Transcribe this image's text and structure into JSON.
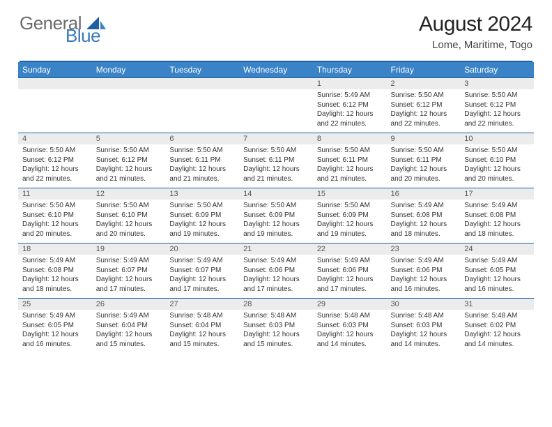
{
  "brand": {
    "part1": "General",
    "part2": "Blue"
  },
  "title": "August 2024",
  "location": "Lome, Maritime, Togo",
  "colors": {
    "header_bg": "#3a83c7",
    "rule": "#1e5fa3",
    "daynum_bg": "#ececec",
    "logo_gray": "#6b6b6b",
    "logo_blue": "#3a7ab8"
  },
  "weekday_labels": [
    "Sunday",
    "Monday",
    "Tuesday",
    "Wednesday",
    "Thursday",
    "Friday",
    "Saturday"
  ],
  "weeks": [
    [
      null,
      null,
      null,
      null,
      {
        "n": "1",
        "sr": "Sunrise: 5:49 AM",
        "ss": "Sunset: 6:12 PM",
        "d1": "Daylight: 12 hours",
        "d2": "and 22 minutes."
      },
      {
        "n": "2",
        "sr": "Sunrise: 5:50 AM",
        "ss": "Sunset: 6:12 PM",
        "d1": "Daylight: 12 hours",
        "d2": "and 22 minutes."
      },
      {
        "n": "3",
        "sr": "Sunrise: 5:50 AM",
        "ss": "Sunset: 6:12 PM",
        "d1": "Daylight: 12 hours",
        "d2": "and 22 minutes."
      }
    ],
    [
      {
        "n": "4",
        "sr": "Sunrise: 5:50 AM",
        "ss": "Sunset: 6:12 PM",
        "d1": "Daylight: 12 hours",
        "d2": "and 22 minutes."
      },
      {
        "n": "5",
        "sr": "Sunrise: 5:50 AM",
        "ss": "Sunset: 6:12 PM",
        "d1": "Daylight: 12 hours",
        "d2": "and 21 minutes."
      },
      {
        "n": "6",
        "sr": "Sunrise: 5:50 AM",
        "ss": "Sunset: 6:11 PM",
        "d1": "Daylight: 12 hours",
        "d2": "and 21 minutes."
      },
      {
        "n": "7",
        "sr": "Sunrise: 5:50 AM",
        "ss": "Sunset: 6:11 PM",
        "d1": "Daylight: 12 hours",
        "d2": "and 21 minutes."
      },
      {
        "n": "8",
        "sr": "Sunrise: 5:50 AM",
        "ss": "Sunset: 6:11 PM",
        "d1": "Daylight: 12 hours",
        "d2": "and 21 minutes."
      },
      {
        "n": "9",
        "sr": "Sunrise: 5:50 AM",
        "ss": "Sunset: 6:11 PM",
        "d1": "Daylight: 12 hours",
        "d2": "and 20 minutes."
      },
      {
        "n": "10",
        "sr": "Sunrise: 5:50 AM",
        "ss": "Sunset: 6:10 PM",
        "d1": "Daylight: 12 hours",
        "d2": "and 20 minutes."
      }
    ],
    [
      {
        "n": "11",
        "sr": "Sunrise: 5:50 AM",
        "ss": "Sunset: 6:10 PM",
        "d1": "Daylight: 12 hours",
        "d2": "and 20 minutes."
      },
      {
        "n": "12",
        "sr": "Sunrise: 5:50 AM",
        "ss": "Sunset: 6:10 PM",
        "d1": "Daylight: 12 hours",
        "d2": "and 20 minutes."
      },
      {
        "n": "13",
        "sr": "Sunrise: 5:50 AM",
        "ss": "Sunset: 6:09 PM",
        "d1": "Daylight: 12 hours",
        "d2": "and 19 minutes."
      },
      {
        "n": "14",
        "sr": "Sunrise: 5:50 AM",
        "ss": "Sunset: 6:09 PM",
        "d1": "Daylight: 12 hours",
        "d2": "and 19 minutes."
      },
      {
        "n": "15",
        "sr": "Sunrise: 5:50 AM",
        "ss": "Sunset: 6:09 PM",
        "d1": "Daylight: 12 hours",
        "d2": "and 19 minutes."
      },
      {
        "n": "16",
        "sr": "Sunrise: 5:49 AM",
        "ss": "Sunset: 6:08 PM",
        "d1": "Daylight: 12 hours",
        "d2": "and 18 minutes."
      },
      {
        "n": "17",
        "sr": "Sunrise: 5:49 AM",
        "ss": "Sunset: 6:08 PM",
        "d1": "Daylight: 12 hours",
        "d2": "and 18 minutes."
      }
    ],
    [
      {
        "n": "18",
        "sr": "Sunrise: 5:49 AM",
        "ss": "Sunset: 6:08 PM",
        "d1": "Daylight: 12 hours",
        "d2": "and 18 minutes."
      },
      {
        "n": "19",
        "sr": "Sunrise: 5:49 AM",
        "ss": "Sunset: 6:07 PM",
        "d1": "Daylight: 12 hours",
        "d2": "and 17 minutes."
      },
      {
        "n": "20",
        "sr": "Sunrise: 5:49 AM",
        "ss": "Sunset: 6:07 PM",
        "d1": "Daylight: 12 hours",
        "d2": "and 17 minutes."
      },
      {
        "n": "21",
        "sr": "Sunrise: 5:49 AM",
        "ss": "Sunset: 6:06 PM",
        "d1": "Daylight: 12 hours",
        "d2": "and 17 minutes."
      },
      {
        "n": "22",
        "sr": "Sunrise: 5:49 AM",
        "ss": "Sunset: 6:06 PM",
        "d1": "Daylight: 12 hours",
        "d2": "and 17 minutes."
      },
      {
        "n": "23",
        "sr": "Sunrise: 5:49 AM",
        "ss": "Sunset: 6:06 PM",
        "d1": "Daylight: 12 hours",
        "d2": "and 16 minutes."
      },
      {
        "n": "24",
        "sr": "Sunrise: 5:49 AM",
        "ss": "Sunset: 6:05 PM",
        "d1": "Daylight: 12 hours",
        "d2": "and 16 minutes."
      }
    ],
    [
      {
        "n": "25",
        "sr": "Sunrise: 5:49 AM",
        "ss": "Sunset: 6:05 PM",
        "d1": "Daylight: 12 hours",
        "d2": "and 16 minutes."
      },
      {
        "n": "26",
        "sr": "Sunrise: 5:49 AM",
        "ss": "Sunset: 6:04 PM",
        "d1": "Daylight: 12 hours",
        "d2": "and 15 minutes."
      },
      {
        "n": "27",
        "sr": "Sunrise: 5:48 AM",
        "ss": "Sunset: 6:04 PM",
        "d1": "Daylight: 12 hours",
        "d2": "and 15 minutes."
      },
      {
        "n": "28",
        "sr": "Sunrise: 5:48 AM",
        "ss": "Sunset: 6:03 PM",
        "d1": "Daylight: 12 hours",
        "d2": "and 15 minutes."
      },
      {
        "n": "29",
        "sr": "Sunrise: 5:48 AM",
        "ss": "Sunset: 6:03 PM",
        "d1": "Daylight: 12 hours",
        "d2": "and 14 minutes."
      },
      {
        "n": "30",
        "sr": "Sunrise: 5:48 AM",
        "ss": "Sunset: 6:03 PM",
        "d1": "Daylight: 12 hours",
        "d2": "and 14 minutes."
      },
      {
        "n": "31",
        "sr": "Sunrise: 5:48 AM",
        "ss": "Sunset: 6:02 PM",
        "d1": "Daylight: 12 hours",
        "d2": "and 14 minutes."
      }
    ]
  ]
}
